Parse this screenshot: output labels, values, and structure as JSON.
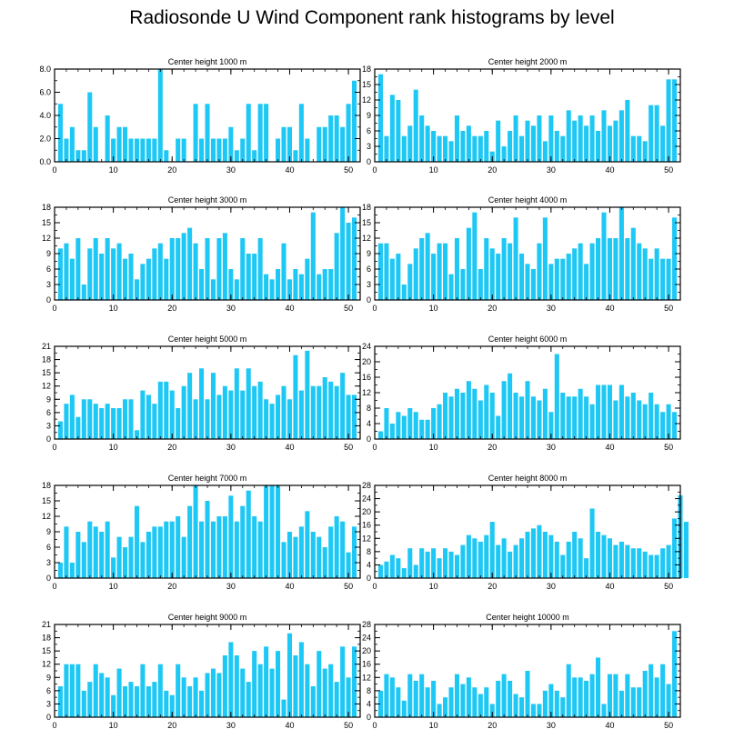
{
  "title": "Radiosonde U Wind Component rank histograms by level",
  "colors": {
    "bar": "#1ec8f5",
    "axis": "#000000",
    "background": "#ffffff"
  },
  "chart_data": [
    {
      "type": "bar",
      "title": "Center height 1000 m",
      "xlim": [
        0,
        52
      ],
      "ylim": [
        0,
        8
      ],
      "xticks": [
        0,
        10,
        20,
        30,
        40,
        50
      ],
      "yticks": [
        0,
        2,
        4,
        6,
        8
      ],
      "ytick_labels": [
        "0.0",
        "2.0",
        "4.0",
        "6.0",
        "8.0"
      ],
      "values": [
        5,
        2,
        3,
        1,
        1,
        6,
        3,
        0,
        4,
        2,
        3,
        3,
        2,
        2,
        2,
        2,
        2,
        8,
        1,
        0,
        2,
        2,
        0,
        5,
        2,
        5,
        2,
        2,
        2,
        3,
        1,
        2,
        5,
        1,
        5,
        5,
        0,
        2,
        3,
        3,
        1,
        5,
        2,
        0,
        3,
        3,
        4,
        4,
        3,
        5,
        7
      ]
    },
    {
      "type": "bar",
      "title": "Center height 2000 m",
      "xlim": [
        0,
        52
      ],
      "ylim": [
        0,
        18
      ],
      "xticks": [
        0,
        10,
        20,
        30,
        40,
        50
      ],
      "yticks": [
        0,
        3,
        6,
        9,
        12,
        15,
        18
      ],
      "ytick_labels": [
        "0",
        "3",
        "6",
        "9",
        "12",
        "15",
        "18"
      ],
      "values": [
        17,
        5,
        13,
        12,
        5,
        7,
        14,
        9,
        7,
        6,
        5,
        5,
        4,
        9,
        6,
        7,
        5,
        5,
        6,
        2,
        8,
        3,
        6,
        9,
        5,
        8,
        7,
        9,
        4,
        9,
        6,
        5,
        10,
        8,
        9,
        7,
        9,
        6,
        10,
        7,
        8,
        10,
        12,
        5,
        5,
        4,
        11,
        11,
        7,
        16,
        16
      ]
    },
    {
      "type": "bar",
      "title": "Center height 3000 m",
      "xlim": [
        0,
        52
      ],
      "ylim": [
        0,
        18
      ],
      "xticks": [
        0,
        10,
        20,
        30,
        40,
        50
      ],
      "yticks": [
        0,
        3,
        6,
        9,
        12,
        15,
        18
      ],
      "ytick_labels": [
        "0",
        "3",
        "6",
        "9",
        "12",
        "15",
        "18"
      ],
      "values": [
        10,
        11,
        8,
        12,
        3,
        10,
        12,
        9,
        12,
        10,
        11,
        8,
        9,
        4,
        7,
        8,
        10,
        11,
        8,
        12,
        12,
        13,
        14,
        11,
        6,
        12,
        4,
        12,
        13,
        6,
        4,
        12,
        9,
        9,
        12,
        5,
        4,
        6,
        11,
        4,
        6,
        5,
        8,
        17,
        5,
        6,
        6,
        13,
        18,
        15,
        16
      ]
    },
    {
      "type": "bar",
      "title": "Center height 4000 m",
      "xlim": [
        0,
        52
      ],
      "ylim": [
        0,
        18
      ],
      "xticks": [
        0,
        10,
        20,
        30,
        40,
        50
      ],
      "yticks": [
        0,
        3,
        6,
        9,
        12,
        15,
        18
      ],
      "ytick_labels": [
        "0",
        "3",
        "6",
        "9",
        "12",
        "15",
        "18"
      ],
      "values": [
        11,
        11,
        8,
        9,
        3,
        7,
        10,
        12,
        13,
        9,
        11,
        11,
        5,
        12,
        6,
        14,
        17,
        6,
        12,
        10,
        9,
        12,
        11,
        16,
        9,
        7,
        6,
        11,
        16,
        7,
        8,
        8,
        9,
        10,
        11,
        7,
        11,
        12,
        17,
        12,
        12,
        18,
        12,
        14,
        11,
        10,
        8,
        10,
        8,
        8,
        16
      ]
    },
    {
      "type": "bar",
      "title": "Center height 5000 m",
      "xlim": [
        0,
        52
      ],
      "ylim": [
        0,
        21
      ],
      "xticks": [
        0,
        10,
        20,
        30,
        40,
        50
      ],
      "yticks": [
        0,
        3,
        6,
        9,
        12,
        15,
        18,
        21
      ],
      "ytick_labels": [
        "0",
        "3",
        "6",
        "9",
        "12",
        "15",
        "18",
        "21"
      ],
      "values": [
        4,
        8,
        10,
        5,
        9,
        9,
        8,
        7,
        8,
        7,
        7,
        9,
        9,
        2,
        11,
        10,
        8,
        13,
        13,
        11,
        7,
        12,
        15,
        9,
        16,
        9,
        15,
        10,
        12,
        11,
        16,
        11,
        16,
        12,
        13,
        9,
        8,
        10,
        12,
        9,
        19,
        11,
        20,
        12,
        12,
        14,
        13,
        12,
        15,
        10,
        10
      ]
    },
    {
      "type": "bar",
      "title": "Center height 6000 m",
      "xlim": [
        0,
        52
      ],
      "ylim": [
        0,
        24
      ],
      "xticks": [
        0,
        10,
        20,
        30,
        40,
        50
      ],
      "yticks": [
        0,
        4,
        8,
        12,
        16,
        20,
        24
      ],
      "ytick_labels": [
        "0",
        "4",
        "8",
        "12",
        "16",
        "20",
        "24"
      ],
      "values": [
        2,
        8,
        4,
        7,
        6,
        8,
        7,
        5,
        5,
        8,
        9,
        12,
        11,
        13,
        12,
        15,
        13,
        10,
        14,
        12,
        6,
        15,
        17,
        12,
        11,
        15,
        11,
        10,
        13,
        7,
        22,
        12,
        11,
        11,
        13,
        11,
        9,
        14,
        14,
        14,
        10,
        14,
        11,
        12,
        10,
        9,
        12,
        9,
        7,
        9,
        7
      ]
    },
    {
      "type": "bar",
      "title": "Center height 7000 m",
      "xlim": [
        0,
        52
      ],
      "ylim": [
        0,
        18
      ],
      "xticks": [
        0,
        10,
        20,
        30,
        40,
        50
      ],
      "yticks": [
        0,
        3,
        6,
        9,
        12,
        15,
        18
      ],
      "ytick_labels": [
        "0",
        "3",
        "6",
        "9",
        "12",
        "15",
        "18"
      ],
      "values": [
        3,
        10,
        3,
        9,
        7,
        11,
        10,
        9,
        11,
        4,
        8,
        6,
        8,
        14,
        7,
        9,
        10,
        10,
        11,
        11,
        12,
        8,
        14,
        18,
        11,
        15,
        11,
        12,
        12,
        16,
        11,
        14,
        17,
        12,
        11,
        18,
        18,
        18,
        7,
        9,
        8,
        10,
        13,
        9,
        8,
        6,
        10,
        12,
        11,
        5,
        10
      ]
    },
    {
      "type": "bar",
      "title": "Center height 8000 m",
      "xlim": [
        0,
        52
      ],
      "ylim": [
        0,
        28
      ],
      "xticks": [
        0,
        10,
        20,
        30,
        40,
        50
      ],
      "yticks": [
        0,
        4,
        8,
        12,
        16,
        20,
        24,
        28
      ],
      "ytick_labels": [
        "0",
        "4",
        "8",
        "12",
        "16",
        "20",
        "24",
        "28"
      ],
      "values": [
        4,
        5,
        7,
        6,
        3,
        9,
        4,
        9,
        8,
        9,
        6,
        9,
        8,
        7,
        10,
        13,
        12,
        11,
        13,
        17,
        10,
        12,
        8,
        10,
        12,
        14,
        15,
        16,
        14,
        13,
        11,
        7,
        11,
        14,
        12,
        6,
        21,
        14,
        13,
        12,
        10,
        11,
        10,
        9,
        9,
        8,
        7,
        7,
        9,
        10,
        18,
        25,
        17
      ]
    },
    {
      "type": "bar",
      "title": "Center height 9000 m",
      "xlim": [
        0,
        52
      ],
      "ylim": [
        0,
        21
      ],
      "xticks": [
        0,
        10,
        20,
        30,
        40,
        50
      ],
      "yticks": [
        0,
        3,
        6,
        9,
        12,
        15,
        18,
        21
      ],
      "ytick_labels": [
        "0",
        "3",
        "6",
        "9",
        "12",
        "15",
        "18",
        "21"
      ],
      "values": [
        7,
        12,
        12,
        12,
        6,
        8,
        12,
        10,
        9,
        5,
        11,
        7,
        8,
        7,
        12,
        7,
        8,
        12,
        6,
        5,
        12,
        9,
        7,
        9,
        6,
        10,
        11,
        10,
        14,
        17,
        14,
        11,
        8,
        15,
        12,
        16,
        11,
        15,
        4,
        19,
        14,
        17,
        12,
        7,
        15,
        11,
        12,
        8,
        16,
        9,
        16
      ]
    },
    {
      "type": "bar",
      "title": "Center height 10000 m",
      "xlim": [
        0,
        52
      ],
      "ylim": [
        0,
        28
      ],
      "xticks": [
        0,
        10,
        20,
        30,
        40,
        50
      ],
      "yticks": [
        0,
        4,
        8,
        12,
        16,
        20,
        24,
        28
      ],
      "ytick_labels": [
        "0",
        "4",
        "8",
        "12",
        "16",
        "20",
        "24",
        "28"
      ],
      "values": [
        8,
        13,
        12,
        9,
        5,
        13,
        11,
        13,
        9,
        11,
        4,
        6,
        9,
        13,
        10,
        12,
        9,
        7,
        9,
        4,
        11,
        13,
        11,
        7,
        6,
        14,
        4,
        4,
        8,
        10,
        8,
        6,
        16,
        12,
        12,
        11,
        13,
        18,
        4,
        13,
        13,
        8,
        13,
        9,
        9,
        14,
        16,
        12,
        16,
        10,
        26
      ]
    }
  ]
}
